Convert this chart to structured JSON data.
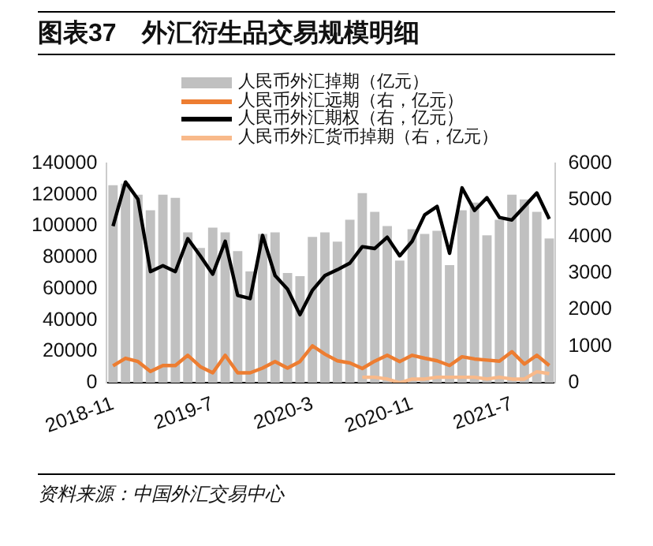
{
  "chart_data": {
    "type": "bar",
    "title": "图表37　外汇衍生品交易规模明细",
    "categories": [
      "2018-11",
      null,
      null,
      null,
      null,
      null,
      null,
      null,
      "2019-7",
      null,
      null,
      null,
      null,
      null,
      null,
      null,
      "2020-3",
      null,
      null,
      null,
      null,
      null,
      null,
      null,
      "2020-11",
      null,
      null,
      null,
      null,
      null,
      null,
      null,
      "2021-7",
      null,
      null,
      null
    ],
    "series": [
      {
        "name": "人民币外汇掉期（亿元）",
        "color": "#c0c0c0",
        "values": [
          126000,
          127000,
          120000,
          110000,
          120000,
          118000,
          96000,
          86000,
          99000,
          96000,
          84000,
          71000,
          95000,
          96000,
          70000,
          68000,
          93000,
          96000,
          90000,
          104000,
          121000,
          109000,
          100000,
          78000,
          98000,
          95000,
          97000,
          75000,
          110000,
          115000,
          94000,
          104000,
          120000,
          117000,
          109000,
          92000
        ]
      },
      {
        "name": "人民币外汇远期（右，亿元）",
        "type": "line",
        "axis": "y2",
        "color": "#ed7d31",
        "values": [
          460,
          670,
          580,
          310,
          470,
          470,
          750,
          440,
          270,
          750,
          270,
          270,
          400,
          580,
          400,
          580,
          1010,
          780,
          600,
          540,
          390,
          590,
          750,
          580,
          750,
          670,
          600,
          470,
          710,
          650,
          620,
          590,
          850,
          510,
          750,
          470
        ]
      },
      {
        "name": "人民币外汇期权（右，亿元）",
        "type": "line",
        "axis": "y2",
        "color": "#000000",
        "values": [
          4280,
          5490,
          5020,
          3040,
          3200,
          3040,
          3940,
          3470,
          2970,
          3870,
          2390,
          2300,
          4030,
          2930,
          2560,
          1860,
          2530,
          2930,
          3090,
          3270,
          3720,
          3670,
          3980,
          3470,
          3870,
          4590,
          4820,
          3540,
          5330,
          4710,
          5060,
          4520,
          4450,
          4820,
          5190,
          4480
        ]
      },
      {
        "name": "人民币外汇货币掉期（右，亿元）",
        "type": "line",
        "axis": "y2",
        "color": "#f8b98a",
        "values": [
          null,
          null,
          null,
          null,
          null,
          null,
          null,
          null,
          null,
          null,
          null,
          null,
          null,
          null,
          null,
          null,
          null,
          null,
          null,
          null,
          150,
          150,
          100,
          0,
          100,
          100,
          150,
          150,
          150,
          150,
          100,
          150,
          100,
          100,
          300,
          250
        ]
      }
    ],
    "ylim": [
      0,
      140000
    ],
    "yticks": [
      0,
      20000,
      40000,
      60000,
      80000,
      100000,
      120000,
      140000
    ],
    "y2lim": [
      0,
      6000
    ],
    "y2ticks": [
      0,
      1000,
      2000,
      3000,
      4000,
      5000,
      6000
    ],
    "grid": false,
    "legend": "top",
    "marker": "none",
    "annotations": [
      "资料来源：中国外汇交易中心"
    ]
  }
}
